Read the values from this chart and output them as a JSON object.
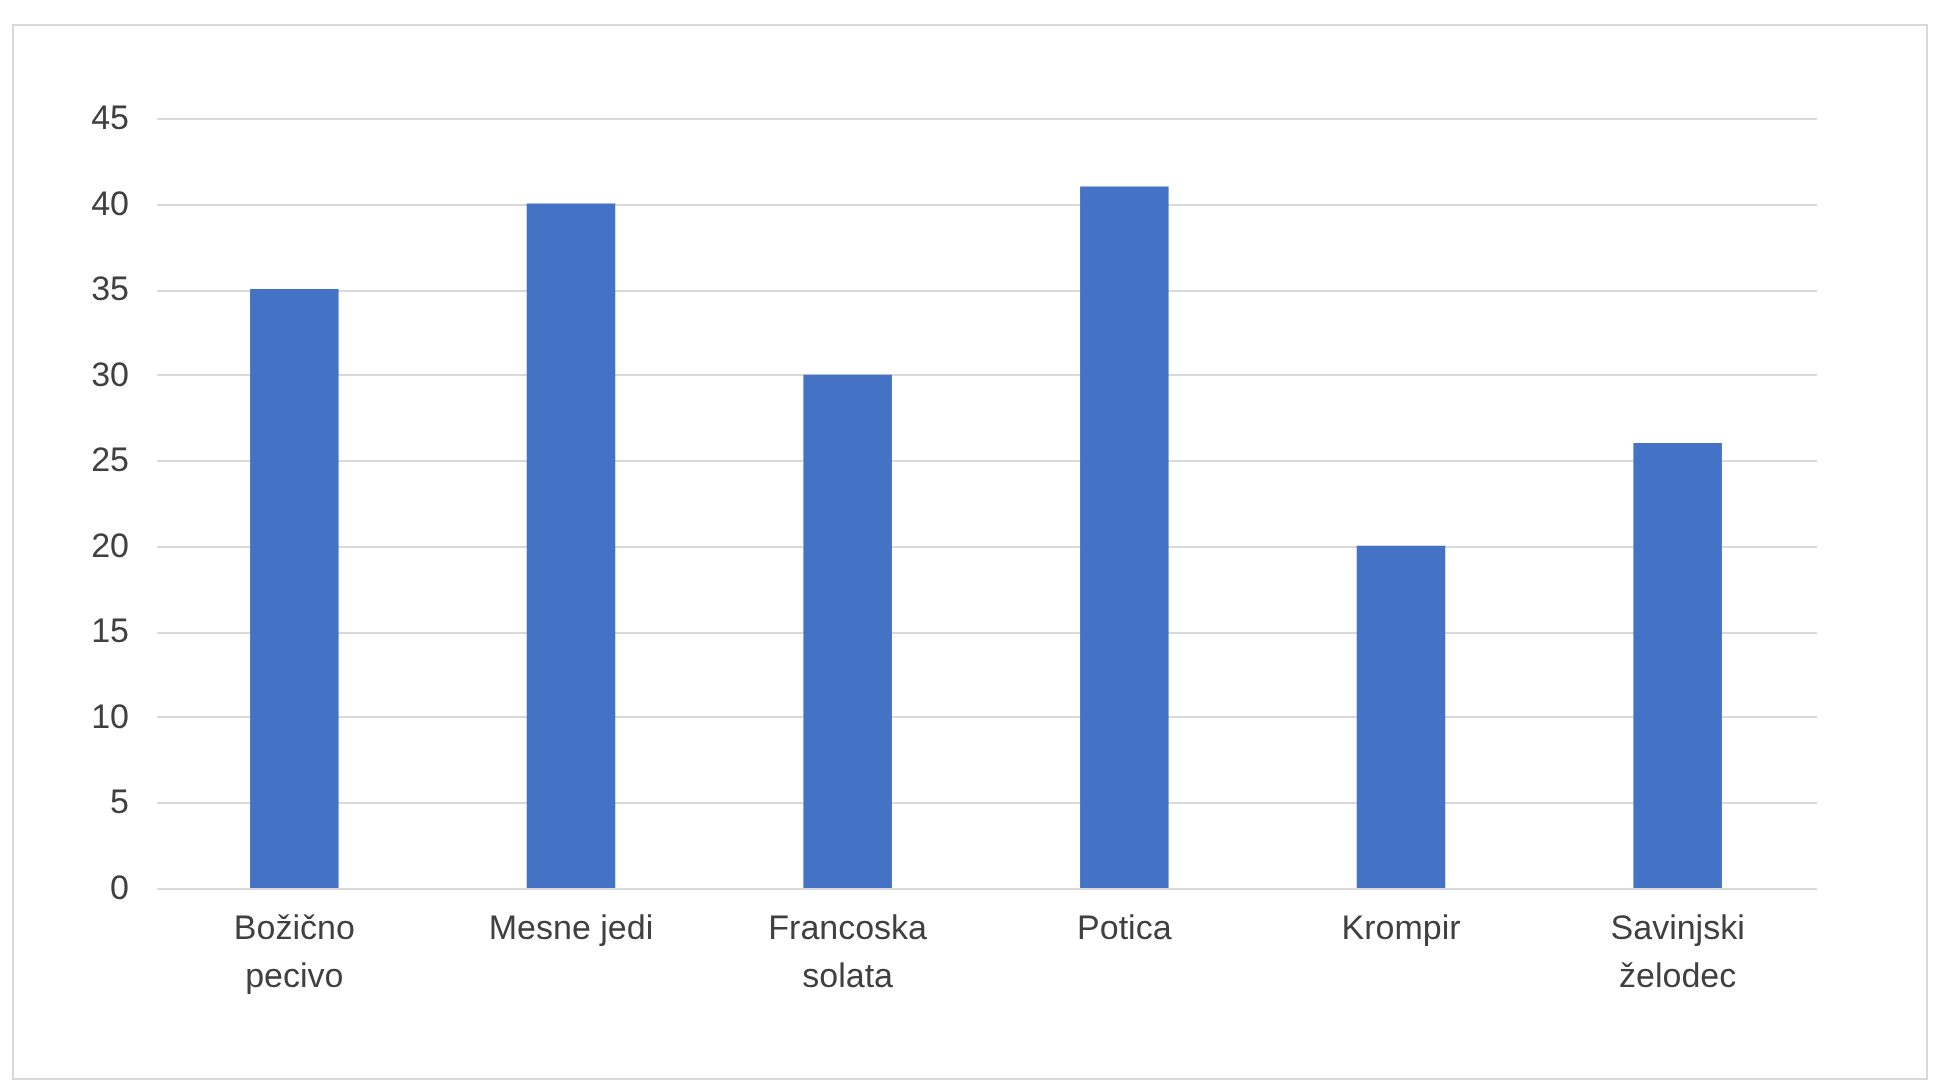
{
  "chart_data": {
    "type": "bar",
    "categories": [
      "Božično pecivo",
      "Mesne jedi",
      "Francoska solata",
      "Potica",
      "Krompir",
      "Savinjski želodec"
    ],
    "values": [
      35,
      40,
      30,
      41,
      20,
      26
    ],
    "color": "#4472c4",
    "ylim": [
      0,
      45
    ],
    "yticks": [
      0,
      5,
      10,
      15,
      20,
      25,
      30,
      35,
      40,
      45
    ],
    "grid": "y"
  }
}
